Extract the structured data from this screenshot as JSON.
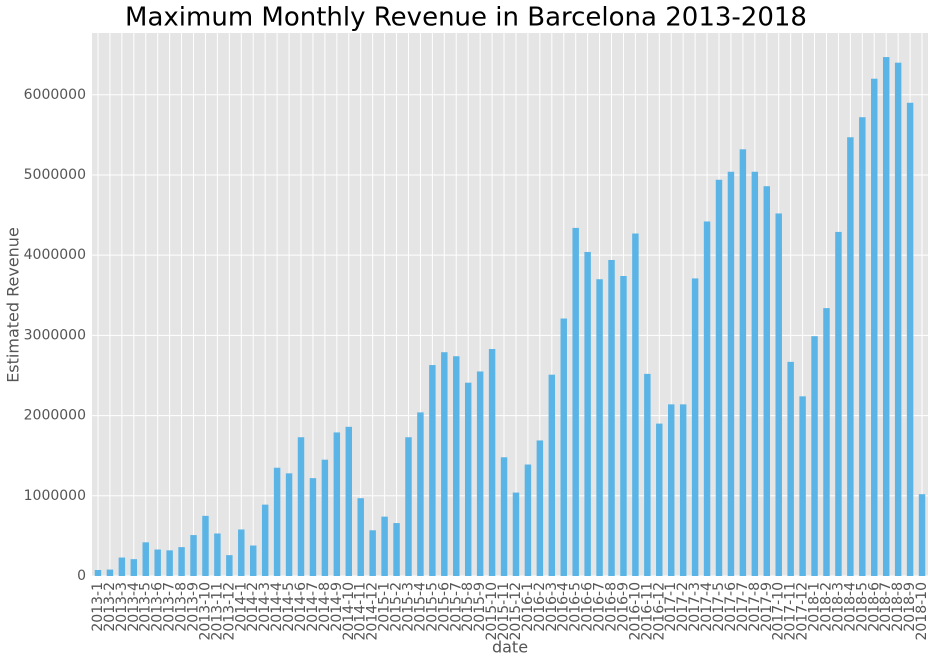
{
  "chart_data": {
    "type": "bar",
    "title": "Maximum Monthly Revenue in Barcelona 2013-2018",
    "x_label": "date",
    "y_label": "Estimated Revenue",
    "categories": [
      "2013-1",
      "2013-2",
      "2013-3",
      "2013-4",
      "2013-5",
      "2013-6",
      "2013-7",
      "2013-8",
      "2013-9",
      "2013-10",
      "2013-11",
      "2013-12",
      "2014-1",
      "2014-2",
      "2014-3",
      "2014-4",
      "2014-5",
      "2014-6",
      "2014-7",
      "2014-8",
      "2014-9",
      "2014-10",
      "2014-11",
      "2014-12",
      "2015-1",
      "2015-2",
      "2015-3",
      "2015-4",
      "2015-5",
      "2015-6",
      "2015-7",
      "2015-8",
      "2015-9",
      "2015-10",
      "2015-11",
      "2015-12",
      "2016-1",
      "2016-2",
      "2016-3",
      "2016-4",
      "2016-5",
      "2016-6",
      "2016-7",
      "2016-8",
      "2016-9",
      "2016-10",
      "2016-11",
      "2016-12",
      "2017-1",
      "2017-2",
      "2017-3",
      "2017-4",
      "2017-5",
      "2017-6",
      "2017-7",
      "2017-8",
      "2017-9",
      "2017-10",
      "2017-11",
      "2017-12",
      "2018-1",
      "2018-2",
      "2018-3",
      "2018-4",
      "2018-5",
      "2018-6",
      "2018-7",
      "2018-8",
      "2018-9",
      "2018-10"
    ],
    "values": [
      75000,
      80000,
      230000,
      210000,
      420000,
      330000,
      320000,
      360000,
      510000,
      750000,
      530000,
      260000,
      580000,
      380000,
      890000,
      1350000,
      1280000,
      1730000,
      1220000,
      1450000,
      1790000,
      1860000,
      970000,
      570000,
      740000,
      660000,
      1730000,
      2040000,
      2630000,
      2790000,
      2740000,
      2410000,
      2550000,
      2830000,
      1480000,
      1040000,
      1390000,
      1690000,
      2510000,
      3210000,
      4340000,
      4040000,
      3700000,
      3940000,
      3740000,
      4270000,
      2520000,
      1900000,
      2140000,
      2140000,
      3710000,
      4420000,
      4940000,
      5040000,
      5320000,
      5040000,
      4860000,
      4520000,
      2670000,
      2240000,
      2990000,
      3340000,
      4290000,
      5470000,
      5720000,
      6200000,
      6470000,
      6400000,
      5900000,
      1020000
    ],
    "color": "#5ab4e5",
    "ylim": [
      0,
      6770000
    ],
    "yticks": [
      0,
      1000000,
      2000000,
      3000000,
      4000000,
      5000000,
      6000000
    ],
    "grid": true
  }
}
